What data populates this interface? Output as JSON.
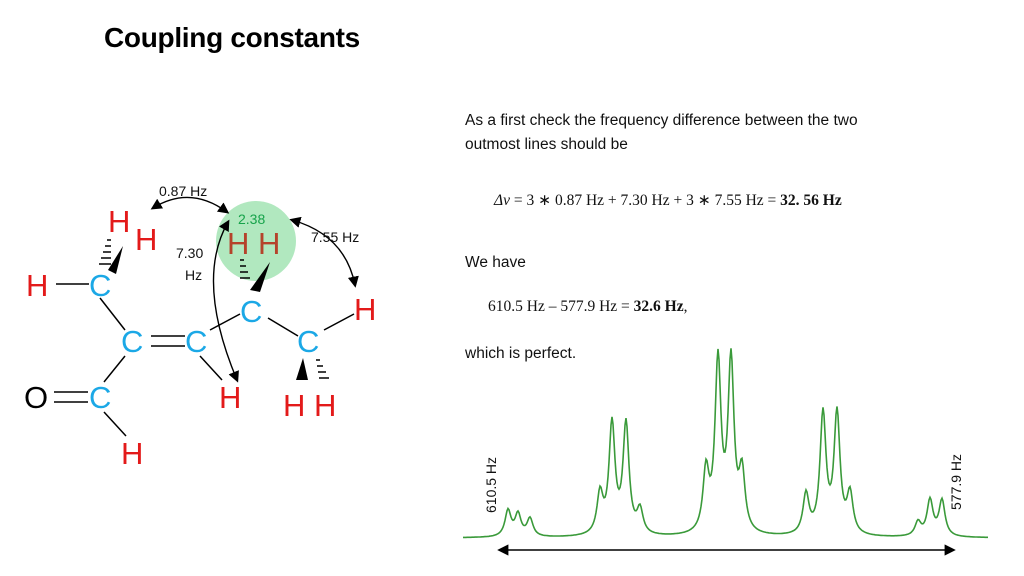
{
  "slide": {
    "title": "Coupling constants",
    "paragraph1_line1": "As a first check the frequency difference between the two",
    "paragraph1_line2": "outmost lines should be",
    "equation1": {
      "lhs": "Δν",
      "rhs": "= 3 ∗ 0.87 Hz + 7.30 Hz + 3 ∗ 7.55 Hz = ",
      "result": "32. 56 Hz"
    },
    "we_have": "We have",
    "equation2": {
      "text": "610.5 Hz – 577.9 Hz = ",
      "result": "32.6 Hz",
      "suffix": ","
    },
    "conclusion": "which is perfect."
  },
  "molecule": {
    "atoms": {
      "H": "H",
      "C": "C",
      "O": "O"
    },
    "highlight_value": "2.38",
    "coupling_labels": {
      "j1": "0.87 Hz",
      "j2_line1": "7.30",
      "j2_line2": "Hz",
      "j3": "7.55 Hz"
    }
  },
  "spectrum": {
    "left_label": "610.5 Hz",
    "right_label": "577.9 Hz",
    "line_color": "#3a9a3a"
  }
}
